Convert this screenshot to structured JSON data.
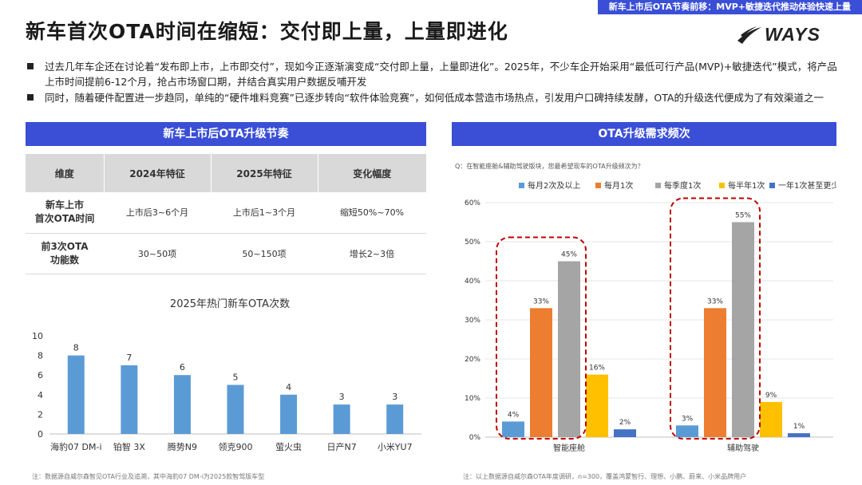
{
  "header": {
    "banner": "新车上市后OTA节奏前移：MVP+敏捷迭代推动体验快速上量",
    "title": "新车首次OTA时间在缩短：交付即上量，上量即进化",
    "logo_text": "WAYS"
  },
  "bullets": [
    "过去几年车企还在讨论着“发布即上市，上市即交付”，现如今正逐渐演变成“交付即上量，上量即进化”。2025年，不少车企开始采用“最低可行产品(MVP)+敏捷迭代”模式，将产品上市时间提前6-12个月，抢占市场窗口期，并结合真实用户数据反哺开发",
    "同时，随着硬件配置进一步趋同，单纯的“硬件堆料竞赛”已逐步转向“软件体验竞赛”，如何低成本营造市场热点，引发用户口碑持续发酵，OTA的升级迭代便成为了有效渠道之一"
  ],
  "left_section": {
    "title": "新车上市后OTA升级节奏",
    "table": {
      "headers": [
        "维度",
        "2024年特征",
        "2025年特征",
        "变化幅度"
      ],
      "rows": [
        {
          "label_line1": "新车上市",
          "label_line2": "首次OTA时间",
          "cells": [
            "上市后3~6个月",
            "上市后1~3个月",
            "缩短50%~70%"
          ]
        },
        {
          "label_line1": "前3次OTA",
          "label_line2": "功能数",
          "cells": [
            "30~50项",
            "50~150项",
            "增长2~3倍"
          ]
        }
      ]
    },
    "footnote": "注：数据源自威尔森智见OTA行业及追溯，其中海豹07 DM-i为2025款智驾版车型"
  },
  "right_section": {
    "title": "OTA升级需求频次",
    "footnote": "注：以上数据源自威尔森OTA年度调研，n=300，覆盖鸿蒙智行、理想、小鹏、蔚来、小米品牌用户"
  },
  "chart_data": [
    {
      "type": "bar",
      "title": "2025年热门新车OTA次数",
      "categories": [
        "海豹07 DM-i",
        "铂智 3X",
        "腾势N9",
        "领克900",
        "萤火虫",
        "日产N7",
        "小米YU7"
      ],
      "values": [
        8,
        7,
        6,
        5,
        4,
        3,
        3
      ],
      "ylim": [
        0,
        10
      ],
      "yticks": [
        0,
        2,
        4,
        6,
        8,
        10
      ],
      "color": "#5b9bd5",
      "grid": false
    },
    {
      "type": "bar",
      "question": "Q：在智能座舱&辅助驾驶版块，您最希望现车的OTA升级频次为？",
      "categories": [
        "智能座舱",
        "辅助驾驶"
      ],
      "series": [
        {
          "name": "每月2次及以上",
          "values": [
            4,
            3
          ],
          "color": "#5b9bd5"
        },
        {
          "name": "每月1次",
          "values": [
            33,
            33
          ],
          "color": "#ed7d31"
        },
        {
          "name": "每季度1次",
          "values": [
            45,
            55
          ],
          "color": "#a5a5a5"
        },
        {
          "name": "每半年1次",
          "values": [
            16,
            9
          ],
          "color": "#ffc000"
        },
        {
          "name": "一年1次甚至更少",
          "values": [
            2,
            1
          ],
          "color": "#4472c4"
        }
      ],
      "value_suffix": "%",
      "ylim": [
        0,
        60
      ],
      "yticks": [
        0,
        10,
        20,
        30,
        40,
        50,
        60
      ],
      "legend": "top",
      "grid": true,
      "highlight_color": "#c00000"
    }
  ]
}
